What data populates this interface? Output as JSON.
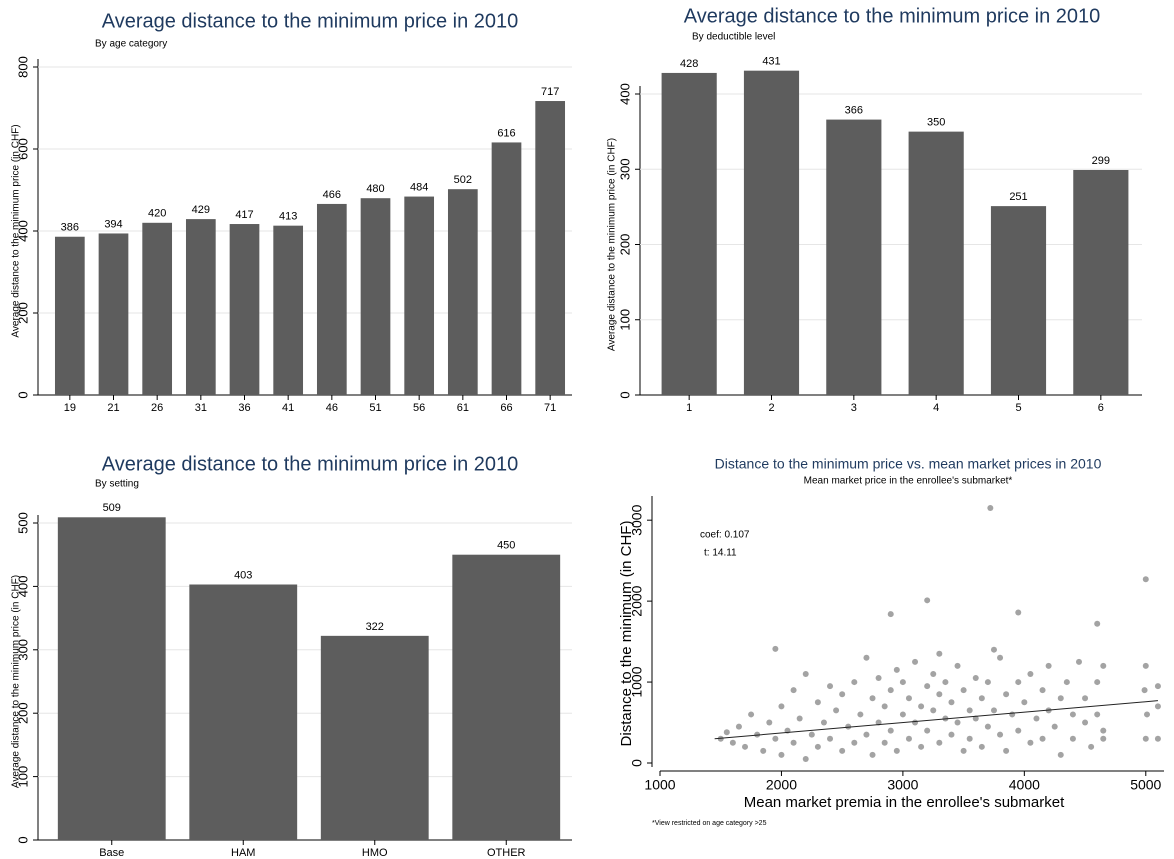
{
  "chart_data": [
    {
      "type": "bar",
      "title": "Average distance to the minimum price in 2010",
      "subtitle": "By age category",
      "ylabel": "Average distance to the minimum price (in CHF)",
      "categories": [
        "19",
        "21",
        "26",
        "31",
        "36",
        "41",
        "46",
        "51",
        "56",
        "61",
        "66",
        "71"
      ],
      "values": [
        386,
        394,
        420,
        429,
        417,
        413,
        466,
        480,
        484,
        502,
        616,
        717
      ],
      "color": "#5d5d5d",
      "ylim": [
        0,
        800
      ],
      "yticks": [
        0,
        200,
        400,
        600,
        800
      ],
      "grid": true
    },
    {
      "type": "bar",
      "title": "Average distance to the minimum price in 2010",
      "subtitle": "By deductible level",
      "ylabel": "Average distance to the minimum price (in CHF)",
      "categories": [
        "1",
        "2",
        "3",
        "4",
        "5",
        "6"
      ],
      "values": [
        428,
        431,
        366,
        350,
        251,
        299
      ],
      "color": "#5d5d5d",
      "ylim": [
        0,
        400
      ],
      "yticks": [
        0,
        100,
        200,
        300,
        400
      ],
      "grid": true
    },
    {
      "type": "bar",
      "title": "Average distance to the minimum price in 2010",
      "subtitle": "By setting",
      "ylabel": "Average distance to the minimum price (in CHF)",
      "categories": [
        "Base",
        "HAM",
        "HMO",
        "OTHER"
      ],
      "values": [
        509,
        403,
        322,
        450
      ],
      "color": "#5d5d5d",
      "ylim": [
        0,
        500
      ],
      "yticks": [
        0,
        100,
        200,
        300,
        400,
        500
      ],
      "grid": true
    },
    {
      "type": "scatter",
      "title": "Distance to the minimum price vs. mean market prices in 2010",
      "subtitle": "Mean market price in the enrollee's submarket*",
      "xlabel": "Mean market premia in the enrollee's submarket",
      "ylabel": "Distance to the minimum (in CHF)",
      "annotations": [
        "coef: 0.107",
        "t: 14.11"
      ],
      "footnote": "*View restricted on age category >25",
      "color": "#a3a3a3",
      "trend_color": "#222222",
      "xlim": [
        1000,
        5150
      ],
      "ylim": [
        0,
        3200
      ],
      "xticks": [
        1000,
        2000,
        3000,
        4000,
        5000
      ],
      "yticks": [
        0,
        1000,
        2000,
        3000
      ],
      "grid": false,
      "x": [
        1500,
        1550,
        1600,
        1650,
        1700,
        1750,
        1800,
        1850,
        1900,
        1950,
        2000,
        2000,
        2050,
        2100,
        2100,
        2150,
        2200,
        2200,
        2250,
        2300,
        2300,
        2350,
        2400,
        2400,
        2450,
        2500,
        2500,
        2550,
        2600,
        2600,
        2650,
        2700,
        2700,
        2750,
        2750,
        2800,
        2800,
        2850,
        2850,
        2900,
        2900,
        2950,
        2950,
        3000,
        3000,
        3050,
        3050,
        3100,
        3100,
        3150,
        3150,
        3200,
        3200,
        3250,
        3250,
        3300,
        3300,
        3350,
        3350,
        3400,
        3400,
        3450,
        3450,
        3500,
        3500,
        3550,
        3550,
        3600,
        3600,
        3650,
        3650,
        3700,
        3700,
        3750,
        3800,
        3800,
        3850,
        3850,
        3900,
        3950,
        3950,
        4000,
        4050,
        4050,
        4100,
        4150,
        4150,
        4200,
        4200,
        4250,
        4300,
        4300,
        4350,
        4400,
        4400,
        4450,
        4500,
        4500,
        4550,
        4600,
        4600,
        4650,
        4650,
        4650,
        4990,
        5000,
        5000,
        5010,
        5100,
        5100,
        5100,
        3720,
        5000,
        3200,
        3950,
        2900,
        4600,
        1950,
        3750,
        3300
      ],
      "y": [
        300,
        380,
        250,
        450,
        200,
        600,
        350,
        150,
        500,
        300,
        700,
        100,
        400,
        900,
        250,
        550,
        1100,
        50,
        350,
        750,
        200,
        500,
        950,
        300,
        650,
        150,
        850,
        450,
        1000,
        250,
        600,
        1300,
        350,
        800,
        100,
        500,
        1050,
        250,
        700,
        900,
        400,
        1150,
        150,
        600,
        1000,
        300,
        800,
        1250,
        500,
        200,
        700,
        950,
        400,
        650,
        1100,
        250,
        850,
        550,
        1000,
        350,
        750,
        1200,
        500,
        150,
        900,
        650,
        300,
        1050,
        550,
        800,
        200,
        1000,
        450,
        650,
        1300,
        350,
        850,
        150,
        600,
        1000,
        400,
        750,
        250,
        1100,
        550,
        900,
        300,
        1200,
        650,
        450,
        800,
        100,
        1000,
        600,
        300,
        1250,
        500,
        800,
        200,
        1000,
        600,
        400,
        1200,
        300,
        900,
        300,
        1200,
        600,
        700,
        300,
        950,
        3150,
        2270,
        2010,
        1860,
        1840,
        1720,
        1410,
        1400,
        1350
      ],
      "trend": {
        "x": [
          1450,
          5100
        ],
        "y": [
          300,
          770
        ]
      }
    }
  ]
}
